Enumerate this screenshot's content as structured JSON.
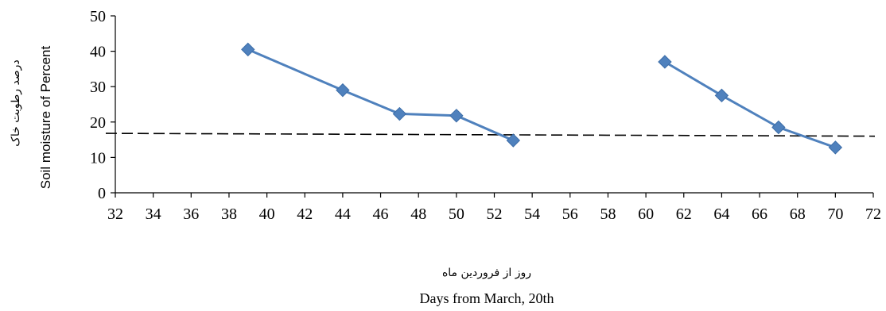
{
  "chart_data": {
    "type": "line",
    "title": "",
    "xlabel_fa": "روز از فروردین ماه",
    "xlabel": "Days from March, 20th",
    "ylabel_fa": "درصد رطوبت خاک",
    "ylabel": "Soil moisture of Percent",
    "xlim": [
      32,
      72
    ],
    "ylim": [
      0,
      50
    ],
    "xticks": [
      32,
      34,
      36,
      38,
      40,
      42,
      44,
      46,
      48,
      50,
      52,
      54,
      56,
      58,
      60,
      62,
      64,
      66,
      68,
      70,
      72
    ],
    "yticks": [
      0,
      10,
      20,
      30,
      40,
      50
    ],
    "grid": false,
    "legend": "none",
    "series": [
      {
        "x": [
          39,
          44,
          47,
          50,
          53
        ],
        "y": [
          40.5,
          29,
          22.3,
          21.8,
          14.8
        ]
      },
      {
        "x": [
          61,
          64,
          67,
          70
        ],
        "y": [
          37,
          27.5,
          18.5,
          12.8
        ]
      }
    ],
    "threshold": {
      "style": "dashed",
      "y_start": 16.8,
      "y_end": 16.0
    },
    "colors": {
      "series": "#4f81bd",
      "axis": "#000000",
      "threshold": "#000000"
    }
  }
}
